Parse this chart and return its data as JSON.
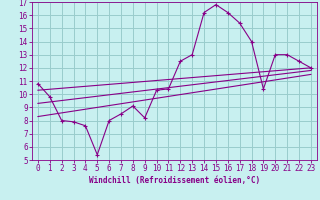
{
  "xlabel": "Windchill (Refroidissement éolien,°C)",
  "bg_color": "#c8f0f0",
  "line_color": "#880088",
  "grid_color": "#99cccc",
  "hours": [
    0,
    1,
    2,
    3,
    4,
    5,
    6,
    7,
    8,
    9,
    10,
    11,
    12,
    13,
    14,
    15,
    16,
    17,
    18,
    19,
    20,
    21,
    22,
    23
  ],
  "windchill": [
    10.8,
    9.8,
    8.0,
    7.9,
    7.6,
    5.4,
    8.0,
    8.5,
    9.1,
    8.2,
    10.3,
    10.4,
    12.5,
    13.0,
    16.2,
    16.8,
    16.2,
    15.4,
    14.0,
    10.4,
    13.0,
    13.0,
    12.5,
    12.0
  ],
  "trend1_x": [
    0,
    23
  ],
  "trend1_y": [
    10.3,
    12.0
  ],
  "trend2_x": [
    0,
    23
  ],
  "trend2_y": [
    9.3,
    11.8
  ],
  "trend3_x": [
    0,
    23
  ],
  "trend3_y": [
    8.3,
    11.5
  ],
  "ylim": [
    5,
    17
  ],
  "xlim": [
    -0.5,
    23.5
  ],
  "yticks": [
    5,
    6,
    7,
    8,
    9,
    10,
    11,
    12,
    13,
    14,
    15,
    16,
    17
  ],
  "xticks": [
    0,
    1,
    2,
    3,
    4,
    5,
    6,
    7,
    8,
    9,
    10,
    11,
    12,
    13,
    14,
    15,
    16,
    17,
    18,
    19,
    20,
    21,
    22,
    23
  ],
  "tick_fontsize": 5.5,
  "xlabel_fontsize": 5.5
}
